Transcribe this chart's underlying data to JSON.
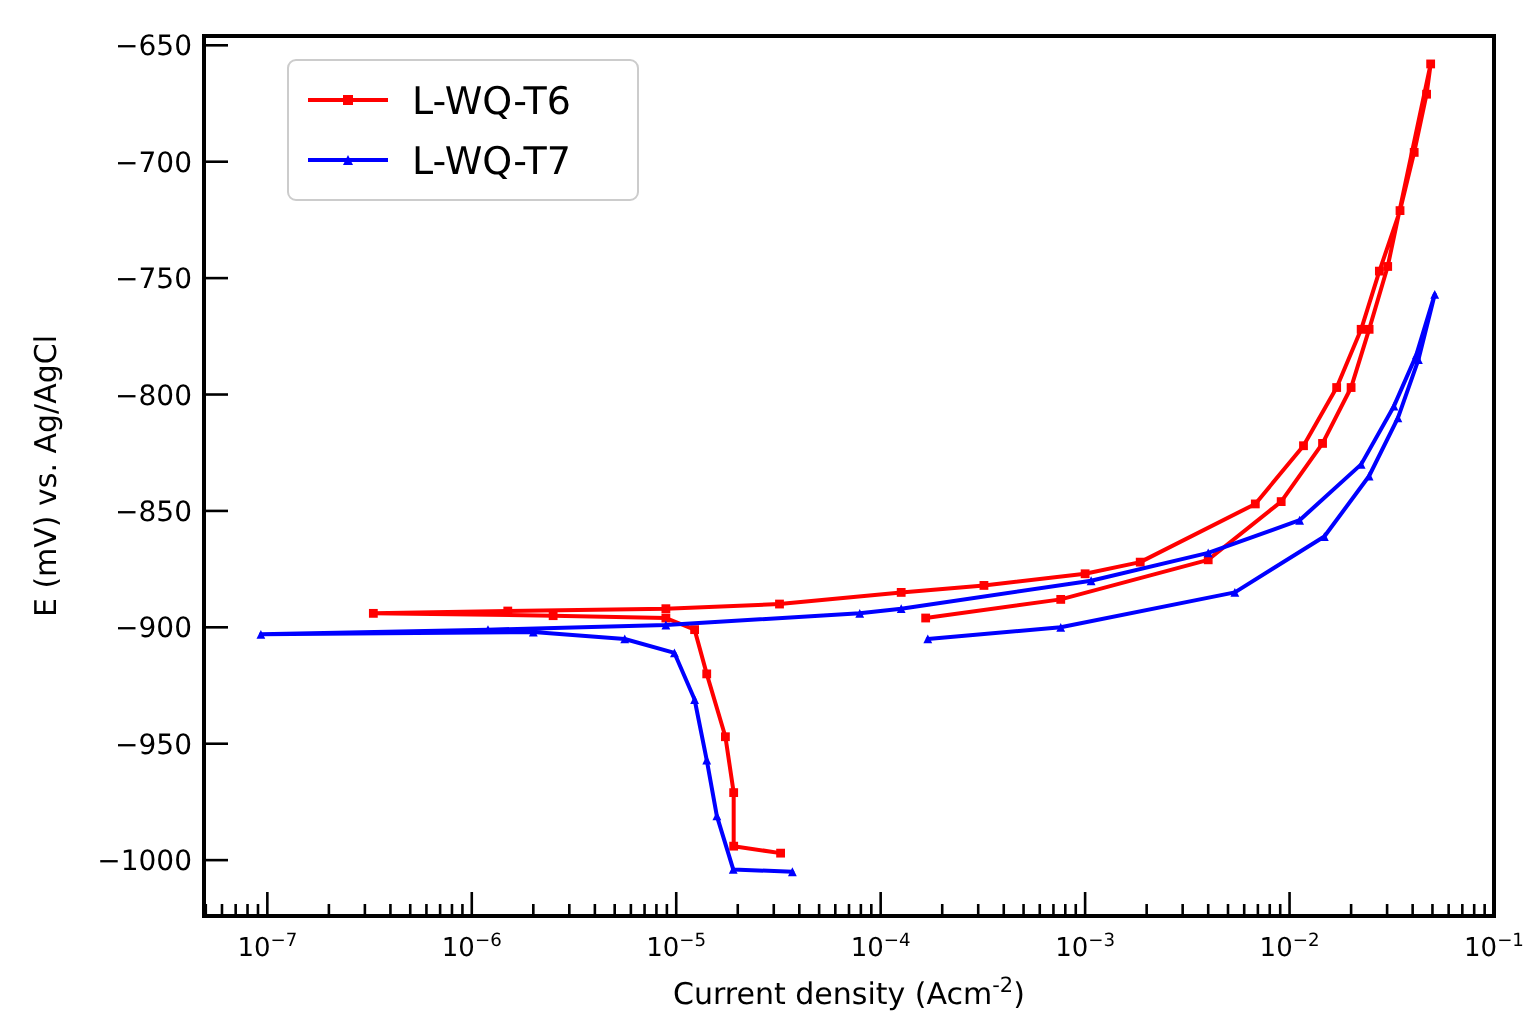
{
  "chart_data": {
    "type": "line",
    "xlabel": "Current density (Acm$^{-2}$)",
    "ylabel": "E (mV) vs. Ag/AgCl",
    "log": "x",
    "grid": false,
    "legend": "top left",
    "line_style": "solid",
    "xlim": [
      4.9e-08,
      0.1
    ],
    "ylim": [
      -1024,
      -646
    ],
    "xticks": [
      {
        "value": 5e-08,
        "label": null
      },
      {
        "value": 6e-08,
        "label": null
      },
      {
        "value": 7e-08,
        "label": null
      },
      {
        "value": 8e-08,
        "label": null
      },
      {
        "value": 9e-08,
        "label": null
      },
      {
        "value": 1e-07,
        "label": "10$^{−7}$"
      },
      {
        "value": 2e-07,
        "label": null
      },
      {
        "value": 3e-07,
        "label": null
      },
      {
        "value": 4e-07,
        "label": null
      },
      {
        "value": 5e-07,
        "label": null
      },
      {
        "value": 6e-07,
        "label": null
      },
      {
        "value": 7e-07,
        "label": null
      },
      {
        "value": 8e-07,
        "label": null
      },
      {
        "value": 9e-07,
        "label": null
      },
      {
        "value": 1e-06,
        "label": "10$^{−6}$"
      },
      {
        "value": 2e-06,
        "label": null
      },
      {
        "value": 3e-06,
        "label": null
      },
      {
        "value": 4e-06,
        "label": null
      },
      {
        "value": 5e-06,
        "label": null
      },
      {
        "value": 6e-06,
        "label": null
      },
      {
        "value": 7e-06,
        "label": null
      },
      {
        "value": 8e-06,
        "label": null
      },
      {
        "value": 9e-06,
        "label": null
      },
      {
        "value": 1e-05,
        "label": "10$^{−5}$"
      },
      {
        "value": 2e-05,
        "label": null
      },
      {
        "value": 3e-05,
        "label": null
      },
      {
        "value": 4e-05,
        "label": null
      },
      {
        "value": 5e-05,
        "label": null
      },
      {
        "value": 6e-05,
        "label": null
      },
      {
        "value": 7e-05,
        "label": null
      },
      {
        "value": 8e-05,
        "label": null
      },
      {
        "value": 9e-05,
        "label": null
      },
      {
        "value": 0.0001,
        "label": "10$^{−4}$"
      },
      {
        "value": 0.0002,
        "label": null
      },
      {
        "value": 0.0003,
        "label": null
      },
      {
        "value": 0.0004,
        "label": null
      },
      {
        "value": 0.0005,
        "label": null
      },
      {
        "value": 0.0006,
        "label": null
      },
      {
        "value": 0.0007,
        "label": null
      },
      {
        "value": 0.0008,
        "label": null
      },
      {
        "value": 0.0009,
        "label": null
      },
      {
        "value": 0.001,
        "label": "10$^{−3}$"
      },
      {
        "value": 0.002,
        "label": null
      },
      {
        "value": 0.003,
        "label": null
      },
      {
        "value": 0.004,
        "label": null
      },
      {
        "value": 0.005,
        "label": null
      },
      {
        "value": 0.006,
        "label": null
      },
      {
        "value": 0.007,
        "label": null
      },
      {
        "value": 0.008,
        "label": null
      },
      {
        "value": 0.009,
        "label": null
      },
      {
        "value": 0.01,
        "label": "10$^{−2}$"
      },
      {
        "value": 0.02,
        "label": null
      },
      {
        "value": 0.03,
        "label": null
      },
      {
        "value": 0.04,
        "label": null
      },
      {
        "value": 0.05,
        "label": null
      },
      {
        "value": 0.06,
        "label": null
      },
      {
        "value": 0.07,
        "label": null
      },
      {
        "value": 0.08,
        "label": null
      },
      {
        "value": 0.09,
        "label": null
      },
      {
        "value": 0.1,
        "label": "10$^{−1}$"
      }
    ],
    "yticks": [
      {
        "value": -650,
        "label": "−650"
      },
      {
        "value": -700,
        "label": "−700"
      },
      {
        "value": -750,
        "label": "−750"
      },
      {
        "value": -800,
        "label": "−800"
      },
      {
        "value": -850,
        "label": "−850"
      },
      {
        "value": -900,
        "label": "−900"
      },
      {
        "value": -950,
        "label": "−950"
      },
      {
        "value": -1000,
        "label": "−1000"
      }
    ],
    "series": [
      {
        "name": "L-WQ-T6",
        "color": "#ff0000",
        "marker": "square",
        "x": [
          3.24e-05,
          1.91e-05,
          1.91e-05,
          1.74e-05,
          1.41e-05,
          1.23e-05,
          8.9e-06,
          2.5e-06,
          3.3e-07,
          1.5e-06,
          8.9e-06,
          3.2e-05,
          0.000126,
          0.00032,
          0.001,
          0.00186,
          0.0068,
          0.0117,
          0.017,
          0.0224,
          0.0275,
          0.0347,
          0.0407,
          0.0468,
          0.049,
          0.0302,
          0.0245,
          0.02,
          0.0145,
          0.0091,
          0.004,
          0.00076,
          0.000166
        ],
        "values": [
          -997,
          -994,
          -971,
          -947,
          -920,
          -901,
          -896,
          -895,
          -894,
          -893,
          -892,
          -890,
          -885,
          -882,
          -877,
          -872,
          -847,
          -822,
          -797,
          -772,
          -747,
          -721,
          -696,
          -671,
          -658,
          -745,
          -772,
          -797,
          -821,
          -846,
          -871,
          -888,
          -896
        ]
      },
      {
        "name": "L-WQ-T7",
        "color": "#0000ff",
        "marker": "triangle",
        "x": [
          3.7e-05,
          1.9e-05,
          1.58e-05,
          1.41e-05,
          1.23e-05,
          9.8e-06,
          5.6e-06,
          2e-06,
          9.3e-08,
          1.2e-06,
          8.9e-06,
          7.9e-05,
          0.000126,
          0.00107,
          0.004,
          0.0112,
          0.0224,
          0.0324,
          0.0417,
          0.0513,
          0.0427,
          0.0339,
          0.0245,
          0.0148,
          0.0054,
          0.00076,
          0.00017
        ],
        "values": [
          -1005,
          -1004,
          -981,
          -957,
          -931,
          -911,
          -905,
          -902,
          -903,
          -901,
          -899,
          -894,
          -892,
          -880,
          -868,
          -854,
          -830,
          -805,
          -783,
          -757,
          -785,
          -810,
          -835,
          -861,
          -885,
          -900,
          -905
        ]
      }
    ]
  }
}
